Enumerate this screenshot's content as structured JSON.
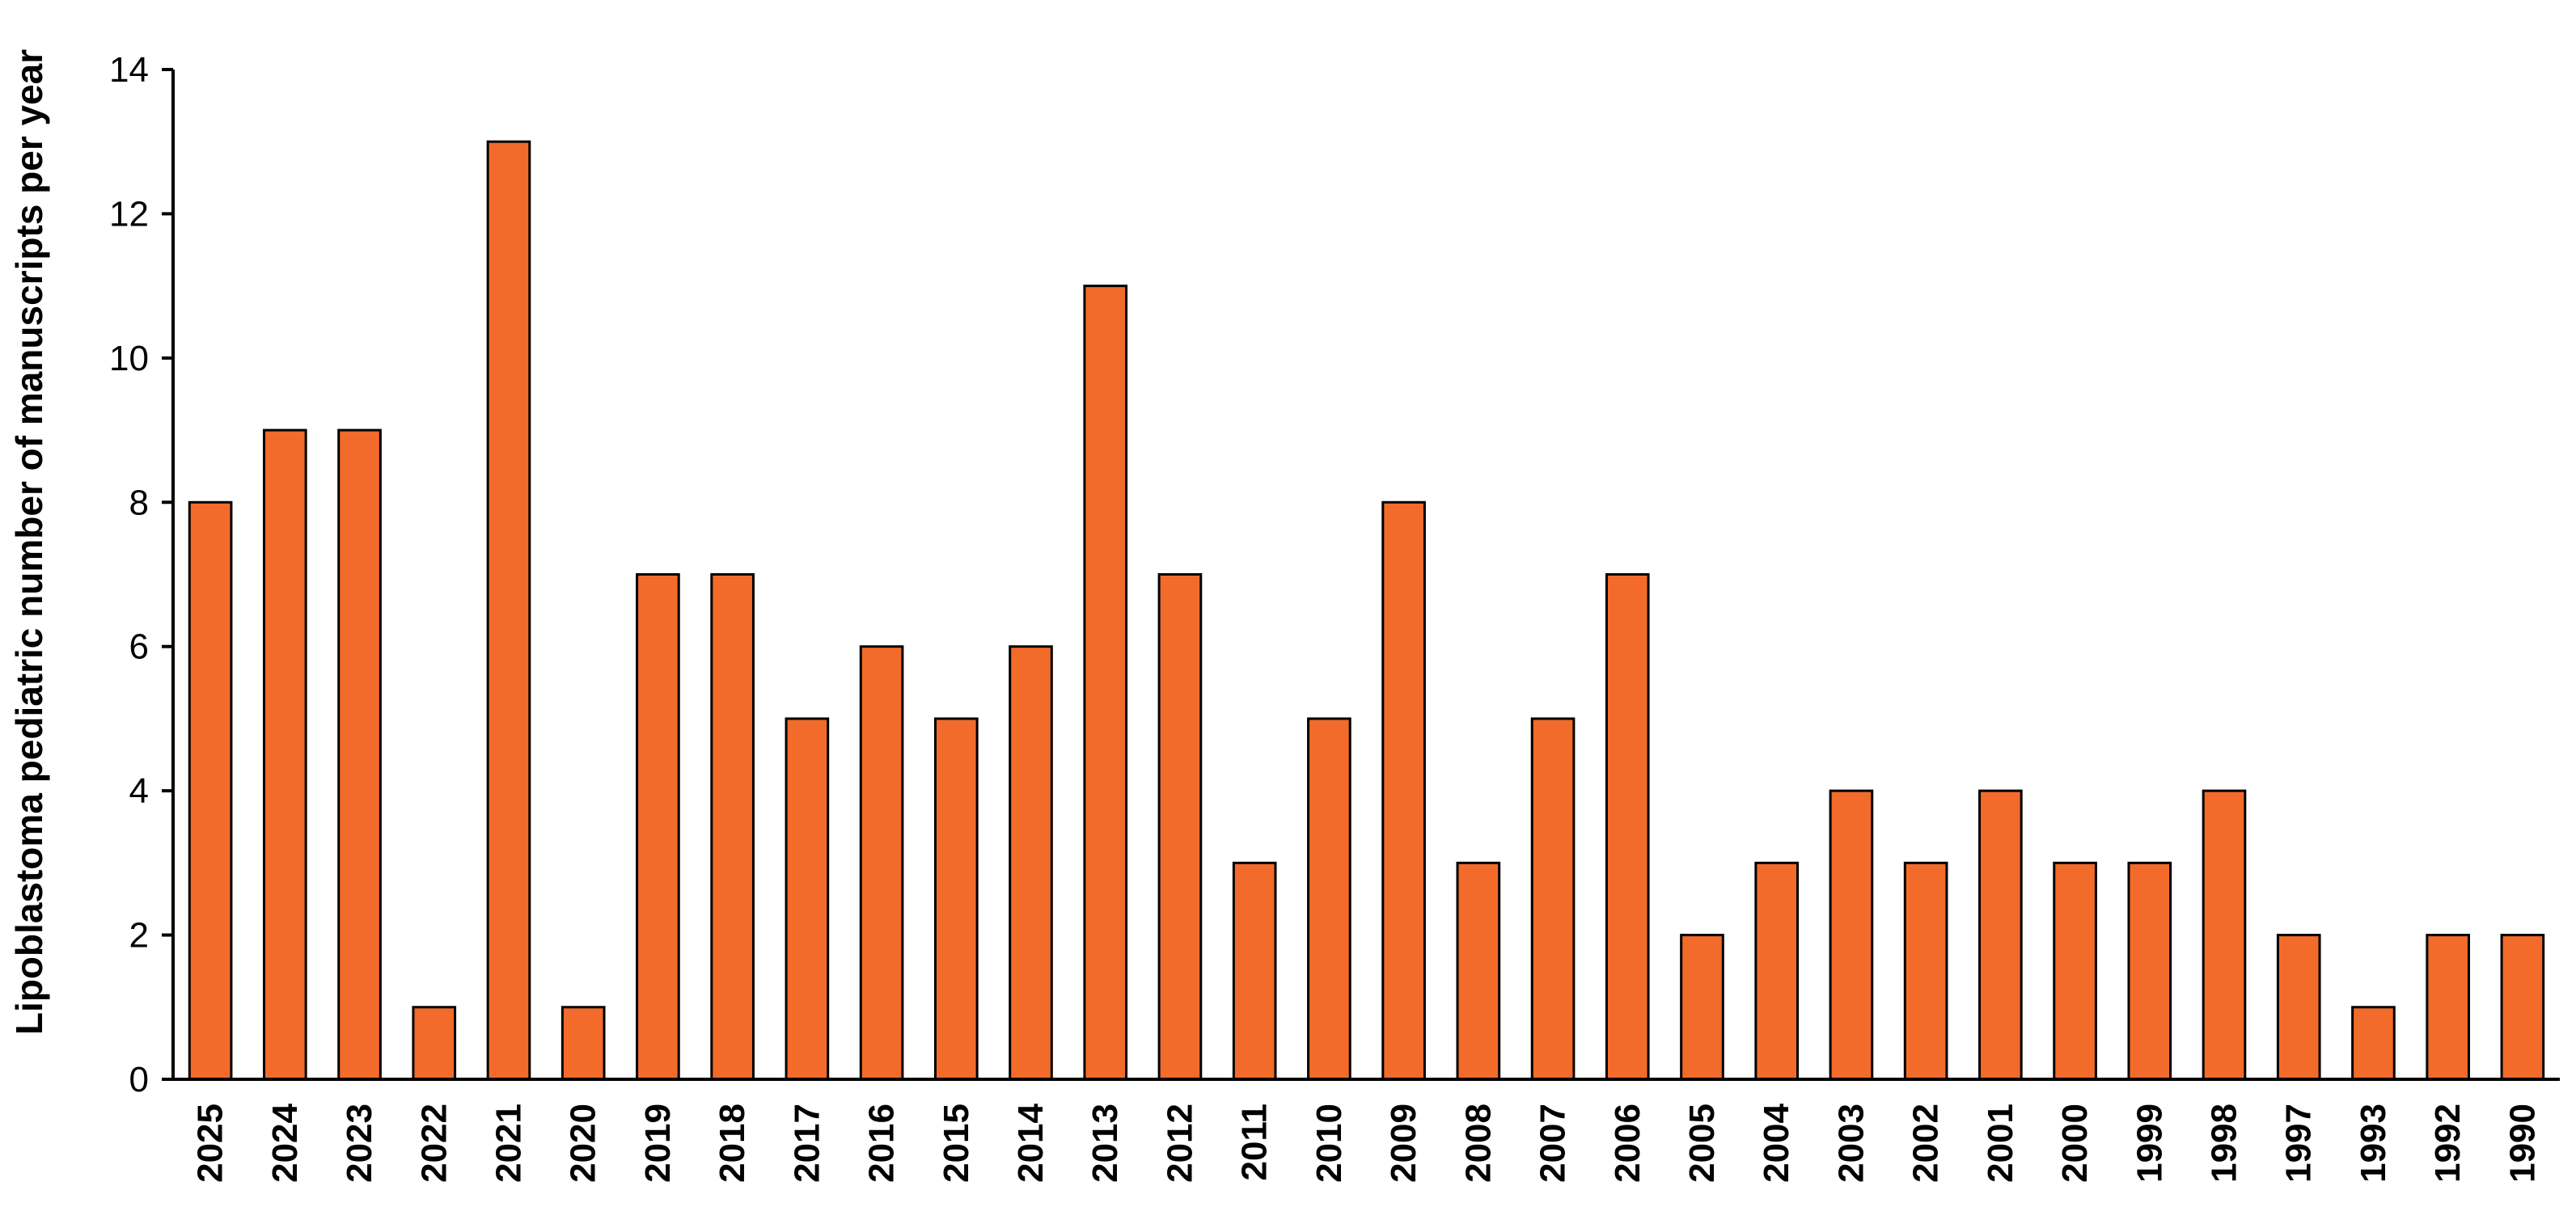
{
  "chart_data": {
    "type": "bar",
    "title": "",
    "xlabel": "",
    "ylabel": "Lipoblastoma pediatric number of manuscripts per year",
    "ylim": [
      0,
      14
    ],
    "yticks": [
      0,
      2,
      4,
      6,
      8,
      10,
      12,
      14
    ],
    "grid": false,
    "legend": "none",
    "bar_color": "#F26B2A",
    "bar_edge_color": "#000000",
    "categories": [
      "2025",
      "2024",
      "2023",
      "2022",
      "2021",
      "2020",
      "2019",
      "2018",
      "2017",
      "2016",
      "2015",
      "2014",
      "2013",
      "2012",
      "2011",
      "2010",
      "2009",
      "2008",
      "2007",
      "2006",
      "2005",
      "2004",
      "2003",
      "2002",
      "2001",
      "2000",
      "1999",
      "1998",
      "1997",
      "1993",
      "1992",
      "1990"
    ],
    "values": [
      8,
      9,
      9,
      1,
      13,
      1,
      7,
      7,
      5,
      6,
      5,
      6,
      11,
      7,
      3,
      5,
      8,
      3,
      5,
      7,
      2,
      3,
      4,
      3,
      4,
      3,
      3,
      4,
      2,
      1,
      2,
      2
    ]
  }
}
